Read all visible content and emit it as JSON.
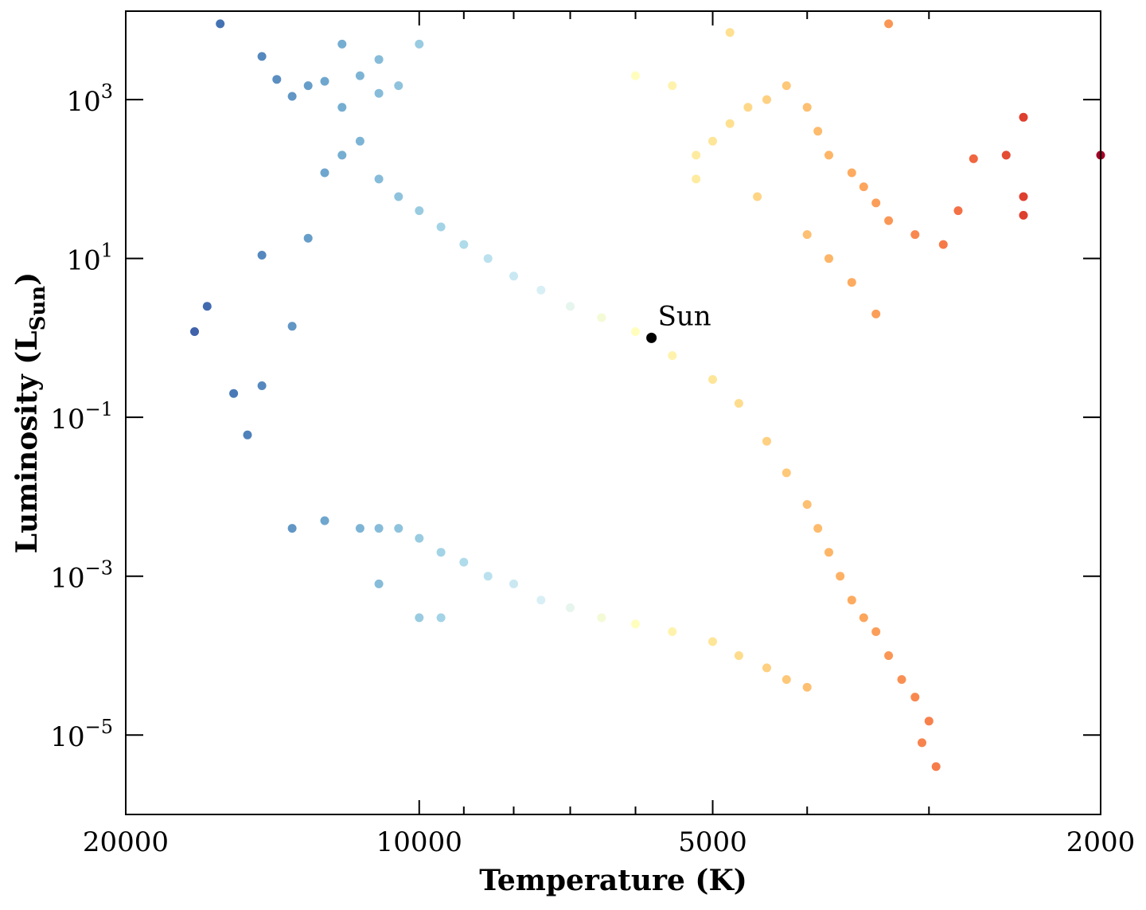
{
  "chart_data": {
    "type": "scatter",
    "title": "",
    "xlabel": "Temperature (K)",
    "ylabel_main": "Luminosity (L",
    "ylabel_sub": "Sun",
    "ylabel_close": ")",
    "x_scale": "log",
    "x_reversed": true,
    "xlim": [
      20000,
      2000
    ],
    "y_scale": "log",
    "ylim": [
      1e-06,
      13000.0
    ],
    "grid": false,
    "legend": "none",
    "colormap": "RdYlBu (by temperature)",
    "x_major_ticks": [
      {
        "value": 20000,
        "label": "20000"
      },
      {
        "value": 10000,
        "label": "10000"
      },
      {
        "value": 5000,
        "label": "5000"
      },
      {
        "value": 2000,
        "label": "2000"
      }
    ],
    "x_minor_ticks": [
      9000,
      8000,
      7000,
      6000,
      4000,
      3000
    ],
    "y_major_ticks": [
      {
        "value": 1000,
        "base": "10",
        "exp": "3"
      },
      {
        "value": 10,
        "base": "10",
        "exp": "1"
      },
      {
        "value": 0.1,
        "base": "10",
        "exp": "−1"
      },
      {
        "value": 0.001,
        "base": "10",
        "exp": "−3"
      },
      {
        "value": 1e-05,
        "base": "10",
        "exp": "−5"
      }
    ],
    "annotation": {
      "label": "Sun",
      "temperature": 5778,
      "luminosity": 1.0,
      "color": "#000000"
    },
    "series": [
      {
        "group": "main sequence",
        "points": [
          [
            17000,
            1.2
          ],
          [
            16500,
            2.5
          ],
          [
            15500,
            0.2
          ],
          [
            15000,
            0.06
          ],
          [
            14500,
            11
          ],
          [
            14500,
            0.25
          ],
          [
            13500,
            1.4
          ],
          [
            13000,
            18
          ],
          [
            16000,
            9000
          ],
          [
            14500,
            3500
          ],
          [
            14000,
            1800
          ],
          [
            13500,
            1100
          ],
          [
            13000,
            1500
          ],
          [
            12500,
            1700
          ],
          [
            12000,
            800
          ],
          [
            12000,
            5000
          ],
          [
            11500,
            2000
          ],
          [
            11000,
            1200
          ],
          [
            11000,
            3200
          ],
          [
            10500,
            1500
          ],
          [
            10000,
            5000
          ],
          [
            11500,
            300
          ],
          [
            12500,
            120
          ],
          [
            12000,
            200
          ],
          [
            11000,
            100
          ],
          [
            10500,
            60
          ],
          [
            10000,
            40
          ],
          [
            9500,
            25
          ],
          [
            9000,
            15
          ],
          [
            8500,
            10
          ],
          [
            8000,
            6
          ],
          [
            7500,
            4
          ],
          [
            7000,
            2.5
          ],
          [
            6500,
            1.8
          ],
          [
            6000,
            1.2
          ],
          [
            5500,
            0.6
          ],
          [
            5000,
            0.3
          ],
          [
            4700,
            0.15
          ],
          [
            4400,
            0.05
          ],
          [
            4200,
            0.02
          ],
          [
            4000,
            0.008
          ],
          [
            3900,
            0.004
          ],
          [
            3800,
            0.002
          ],
          [
            3700,
            0.001
          ],
          [
            3600,
            0.0005
          ],
          [
            3500,
            0.0003
          ],
          [
            3400,
            0.0002
          ],
          [
            3300,
            0.0001
          ],
          [
            3200,
            5e-05
          ],
          [
            3100,
            3e-05
          ],
          [
            3000,
            1.5e-05
          ],
          [
            3050,
            8e-06
          ],
          [
            2950,
            4e-06
          ]
        ]
      },
      {
        "group": "giants",
        "points": [
          [
            5200,
            200
          ],
          [
            5000,
            300
          ],
          [
            4800,
            500
          ],
          [
            4600,
            800
          ],
          [
            4400,
            1000
          ],
          [
            4200,
            1500
          ],
          [
            4000,
            800
          ],
          [
            3900,
            400
          ],
          [
            3800,
            200
          ],
          [
            3600,
            120
          ],
          [
            3500,
            80
          ],
          [
            3400,
            50
          ],
          [
            3300,
            30
          ],
          [
            3100,
            20
          ],
          [
            2900,
            15
          ],
          [
            2800,
            40
          ],
          [
            2400,
            600
          ],
          [
            2400,
            60
          ],
          [
            2400,
            35
          ],
          [
            2500,
            200
          ],
          [
            2700,
            180
          ],
          [
            2000,
            200
          ],
          [
            3300,
            9000
          ],
          [
            4800,
            7000
          ],
          [
            5500,
            1500
          ],
          [
            6000,
            2000
          ],
          [
            5200,
            100
          ],
          [
            4500,
            60
          ],
          [
            4000,
            20
          ],
          [
            3800,
            10
          ],
          [
            3600,
            5
          ],
          [
            3400,
            2
          ]
        ]
      },
      {
        "group": "white dwarfs",
        "points": [
          [
            13500,
            0.004
          ],
          [
            12500,
            0.005
          ],
          [
            11500,
            0.004
          ],
          [
            11000,
            0.004
          ],
          [
            10500,
            0.004
          ],
          [
            10000,
            0.003
          ],
          [
            9500,
            0.002
          ],
          [
            9000,
            0.0015
          ],
          [
            8500,
            0.001
          ],
          [
            8000,
            0.0008
          ],
          [
            7500,
            0.0005
          ],
          [
            7000,
            0.0004
          ],
          [
            6500,
            0.0003
          ],
          [
            6000,
            0.00025
          ],
          [
            5500,
            0.0002
          ],
          [
            5000,
            0.00015
          ],
          [
            4700,
            0.0001
          ],
          [
            4400,
            7e-05
          ],
          [
            4200,
            5e-05
          ],
          [
            4000,
            4e-05
          ],
          [
            11000,
            0.0008
          ],
          [
            10000,
            0.0003
          ],
          [
            9500,
            0.0003
          ]
        ]
      }
    ]
  }
}
